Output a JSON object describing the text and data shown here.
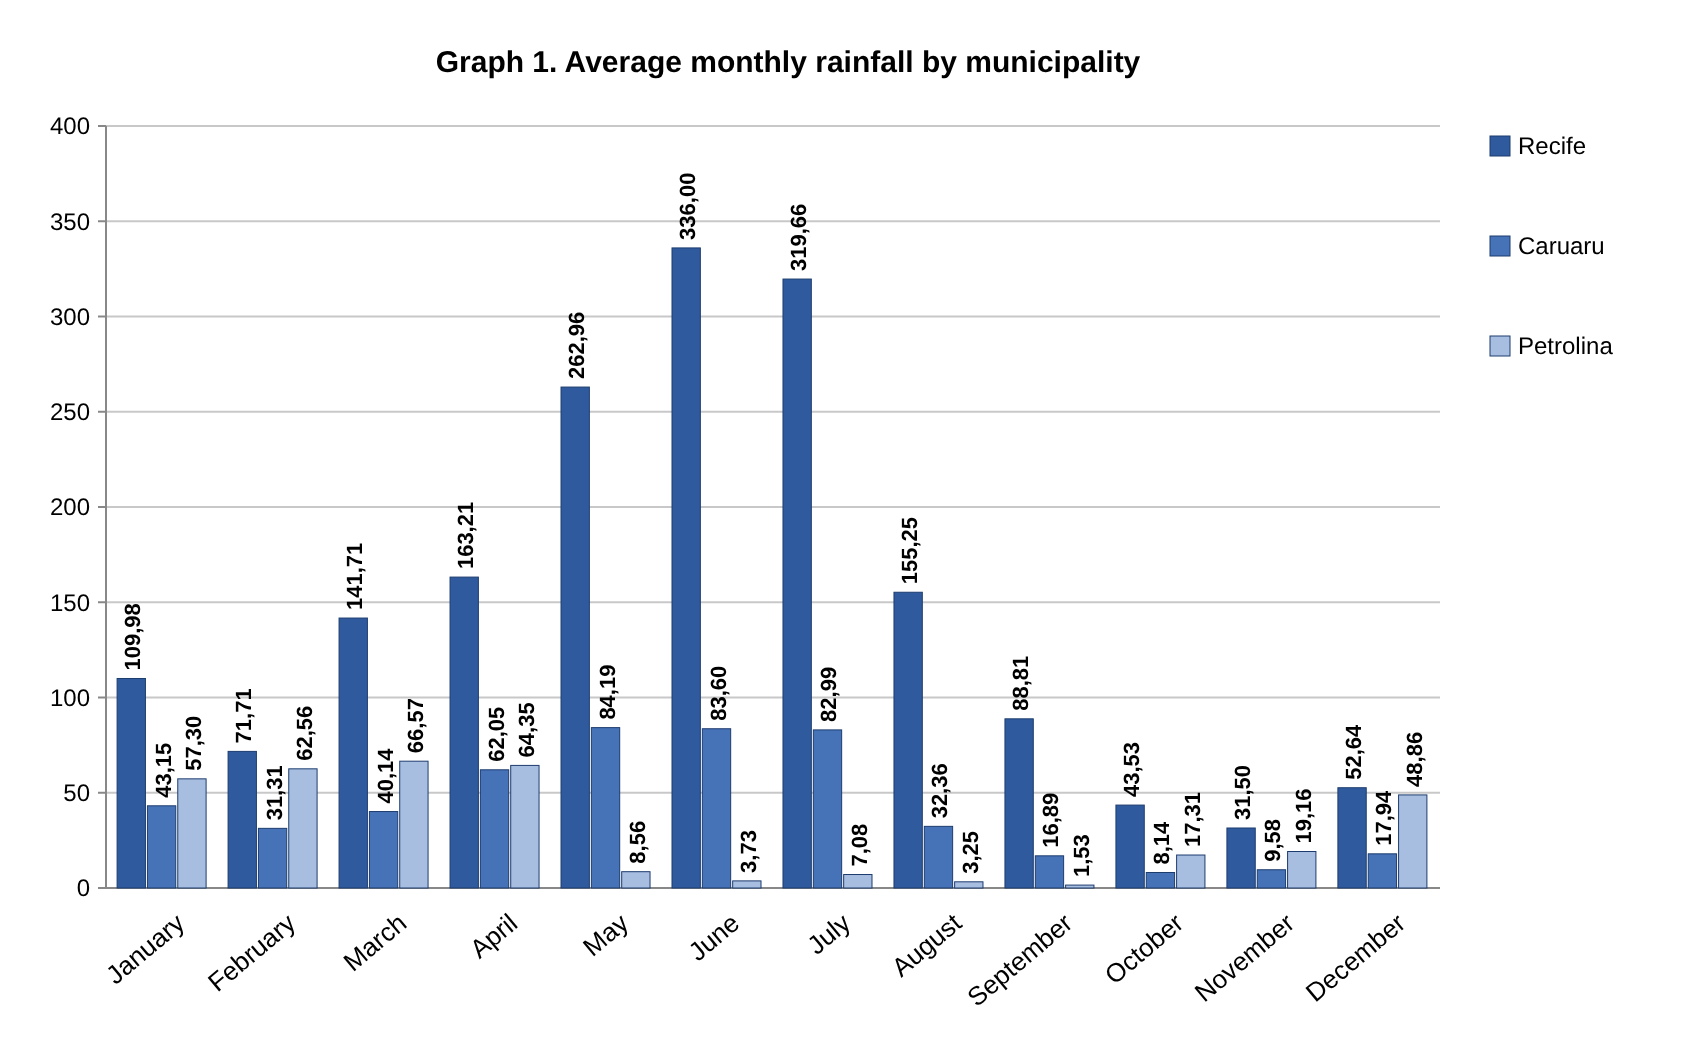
{
  "chart_data": {
    "type": "bar",
    "title": "Graph 1. Average monthly rainfall by municipality",
    "categories": [
      "January",
      "February",
      "March",
      "April",
      "May",
      "June",
      "July",
      "August",
      "September",
      "October",
      "November",
      "December"
    ],
    "series": [
      {
        "name": "Recife",
        "color": "#2f5b9e",
        "values": [
          109.98,
          71.71,
          141.71,
          163.21,
          262.96,
          336.0,
          319.66,
          155.25,
          88.81,
          43.53,
          31.5,
          52.64
        ],
        "value_labels": [
          "109,98",
          "71,71",
          "141,71",
          "163,21",
          "262,96",
          "336,00",
          "319,66",
          "155,25",
          "88,81",
          "43,53",
          "31,50",
          "52,64"
        ]
      },
      {
        "name": "Caruaru",
        "color": "#4672b8",
        "values": [
          43.15,
          31.31,
          40.14,
          62.05,
          84.19,
          83.6,
          82.99,
          32.36,
          16.89,
          8.14,
          9.58,
          17.94
        ],
        "value_labels": [
          "43,15",
          "31,31",
          "40,14",
          "62,05",
          "84,19",
          "83,60",
          "82,99",
          "32,36",
          "16,89",
          "8,14",
          "9,58",
          "17,94"
        ]
      },
      {
        "name": "Petrolina",
        "color": "#a8bee0",
        "values": [
          57.3,
          62.56,
          66.57,
          64.35,
          8.56,
          3.73,
          7.08,
          3.25,
          1.53,
          17.31,
          19.16,
          48.86
        ],
        "value_labels": [
          "57,30",
          "62,56",
          "66,57",
          "64,35",
          "8,56",
          "3,73",
          "7,08",
          "3,25",
          "1,53",
          "17,31",
          "19,16",
          "48,86"
        ]
      }
    ],
    "ylim": [
      0,
      400
    ],
    "yticks": [
      0,
      50,
      100,
      150,
      200,
      250,
      300,
      350,
      400
    ],
    "grid": "y",
    "legend": "right"
  }
}
